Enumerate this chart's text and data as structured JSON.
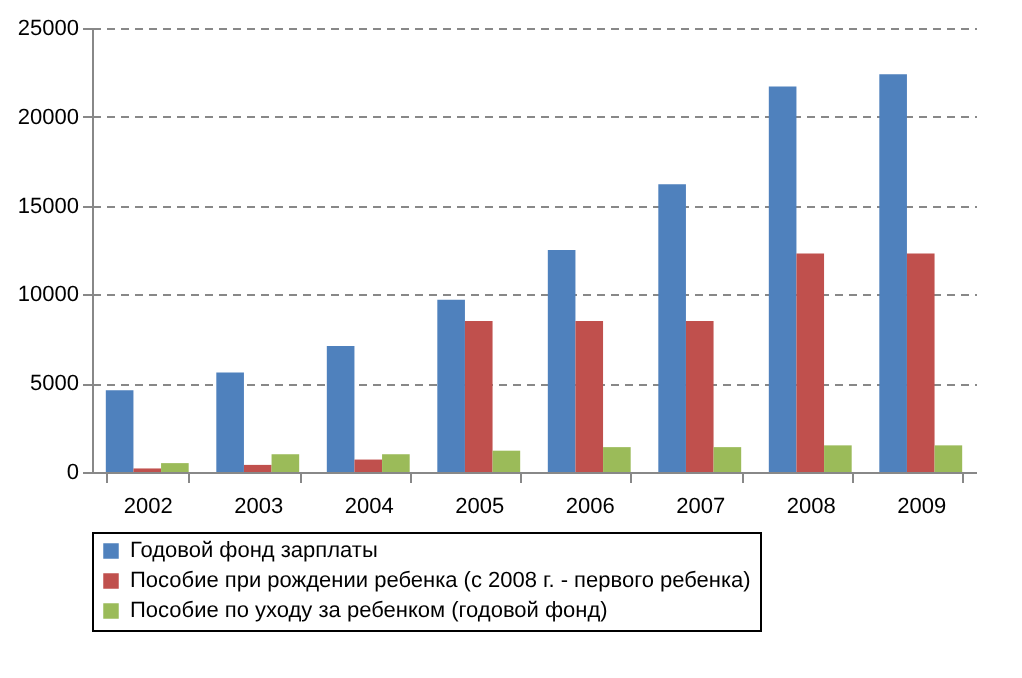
{
  "chart_data": {
    "type": "bar",
    "categories": [
      "2002",
      "2003",
      "2004",
      "2005",
      "2006",
      "2007",
      "2008",
      "2009"
    ],
    "series": [
      {
        "name": "Годовой фонд зарплаты",
        "color": "#4f81bd",
        "values": [
          4600,
          5600,
          7100,
          9700,
          12500,
          16200,
          21700,
          22400
        ]
      },
      {
        "name": "Пособие при рождении ребенка (с 2008 г. - первого ребенка)",
        "color": "#c0504d",
        "values": [
          200,
          400,
          700,
          8500,
          8500,
          8500,
          12300,
          12300
        ]
      },
      {
        "name": "Пособие по уходу за ребенком (годовой фонд)",
        "color": "#9bbb59",
        "values": [
          500,
          1000,
          1000,
          1200,
          1400,
          1400,
          1500,
          1500
        ]
      }
    ],
    "ylim": [
      0,
      25000
    ],
    "yticks": [
      0,
      5000,
      10000,
      15000,
      20000,
      25000
    ],
    "grid": "y",
    "legend": "bottom"
  }
}
